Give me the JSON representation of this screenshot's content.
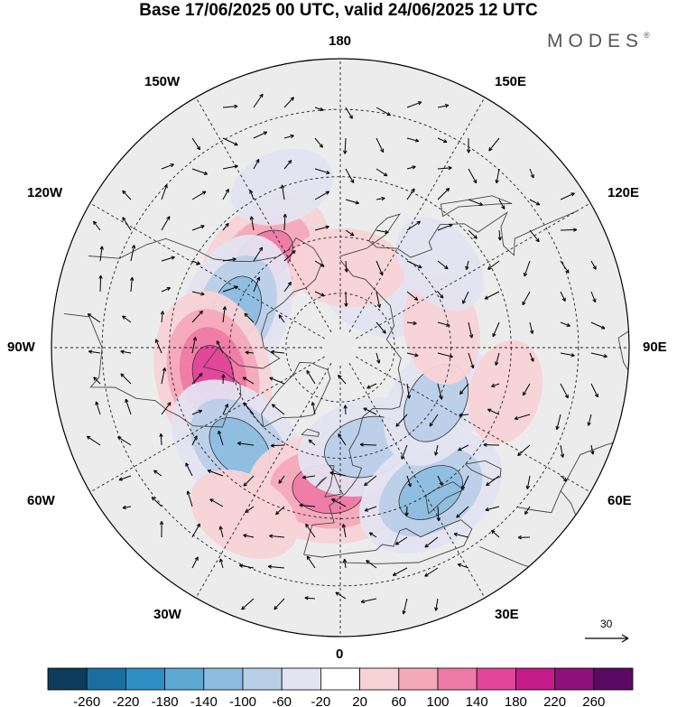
{
  "title": "Base 17/06/2025 00 UTC, valid 24/06/2025 12 UTC",
  "brand": "MODES",
  "brand_mark": "®",
  "longitude_labels": {
    "n180": "180",
    "w150": "150W",
    "e150": "150E",
    "w120": "120W",
    "e120": "120E",
    "w90": "90W",
    "e90": "90E",
    "w60": "60W",
    "e60": "60E",
    "w30": "30W",
    "e30": "30E",
    "s0": "0"
  },
  "reference_vector": {
    "label": "30"
  },
  "colorbar": {
    "tick_labels": [
      "-260",
      "-220",
      "-180",
      "-140",
      "-100",
      "-60",
      "-20",
      "20",
      "60",
      "100",
      "140",
      "180",
      "220",
      "260"
    ],
    "colors": [
      "#0d3d5c",
      "#1a6ea0",
      "#2f8fc4",
      "#5ea8d4",
      "#8cbde0",
      "#b9cfe8",
      "#e4e3f1",
      "#ffffff",
      "#f8d3d6",
      "#f4a9b9",
      "#ee7aa6",
      "#e2459a",
      "#c41b89",
      "#8f0f7b",
      "#5a0a63"
    ]
  },
  "anomalies": [
    {
      "lon": -140,
      "lat": 58,
      "value": 120
    },
    {
      "lon": -110,
      "lat": 60,
      "value": -140
    },
    {
      "lon": -78,
      "lat": 55,
      "value": 170
    },
    {
      "lon": -45,
      "lat": 52,
      "value": -150
    },
    {
      "lon": -5,
      "lat": 52,
      "value": 150
    },
    {
      "lon": 15,
      "lat": 62,
      "value": -110
    },
    {
      "lon": 32,
      "lat": 45,
      "value": -140
    },
    {
      "lon": 60,
      "lat": 60,
      "value": -100
    },
    {
      "lon": 150,
      "lat": 72,
      "value": -70
    },
    {
      "lon": 175,
      "lat": 68,
      "value": 60
    },
    {
      "lon": 100,
      "lat": 62,
      "value": 50
    },
    {
      "lon": 75,
      "lat": 45,
      "value": 40
    },
    {
      "lon": -30,
      "lat": 40,
      "value": 60
    },
    {
      "lon": -160,
      "lat": 45,
      "value": -40
    },
    {
      "lon": 130,
      "lat": 55,
      "value": -40
    }
  ]
}
